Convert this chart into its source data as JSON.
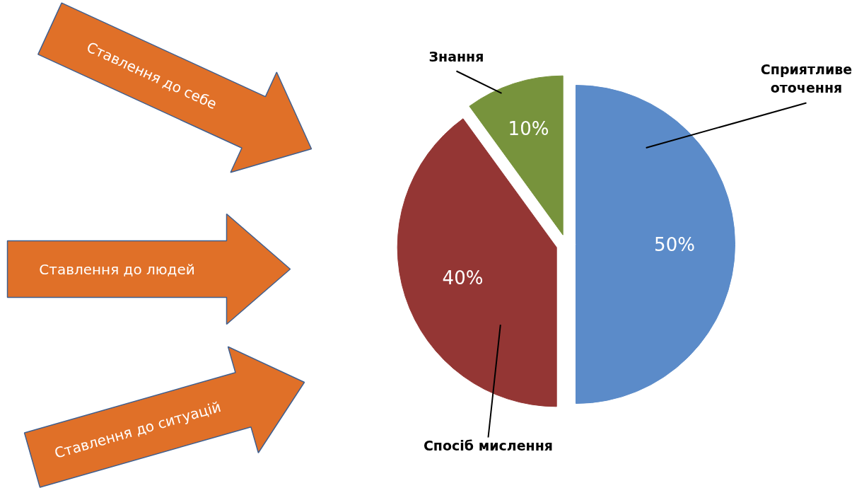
{
  "chart_data": {
    "type": "pie",
    "categories": [
      "Сприятливе оточення",
      "Спосіб мислення",
      "Знання"
    ],
    "values": [
      50,
      40,
      10
    ],
    "colors": [
      "#5b8bc9",
      "#943634",
      "#77933c"
    ],
    "value_labels": [
      "50%",
      "40%",
      "10%"
    ],
    "annotations": [
      "Ставлення до себе",
      "Ставлення до людей",
      "Ставлення до ситуацій"
    ]
  }
}
